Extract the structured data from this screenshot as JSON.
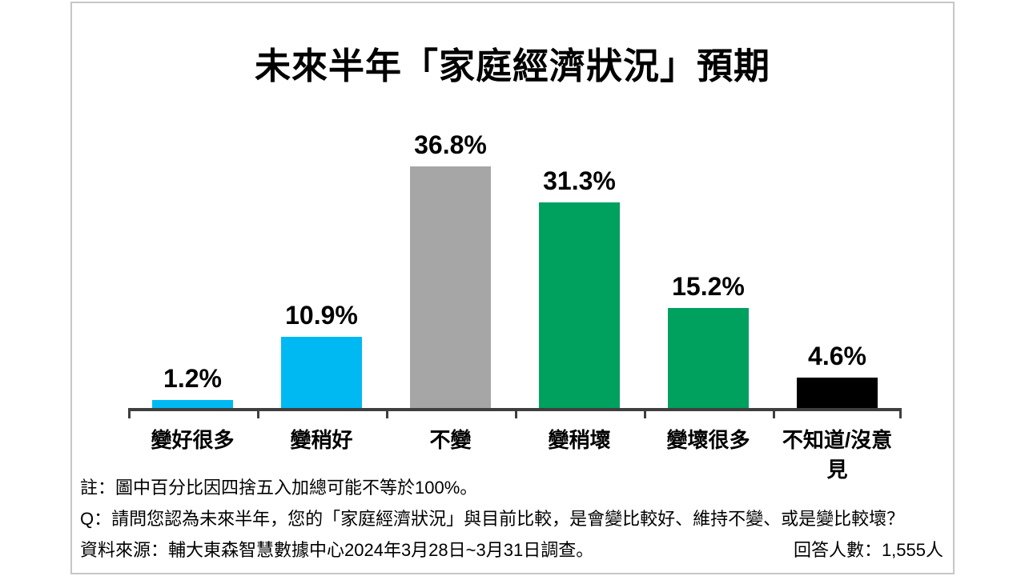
{
  "chart_data": {
    "type": "bar",
    "title": "未來半年「家庭經濟狀況」預期",
    "categories": [
      "變好很多",
      "變稍好",
      "不變",
      "變稍壞",
      "變壞很多",
      "不知道/沒意見"
    ],
    "values": [
      1.2,
      10.9,
      36.8,
      31.3,
      15.2,
      4.6
    ],
    "value_labels": [
      "1.2%",
      "10.9%",
      "36.8%",
      "31.3%",
      "15.2%",
      "4.6%"
    ],
    "bar_colors": [
      "#00B9F2",
      "#00B9F2",
      "#A6A6A6",
      "#00A05E",
      "#00A05E",
      "#000000"
    ],
    "ylim": [
      0,
      40
    ],
    "grid": false,
    "legend": false,
    "axis_color": "#3F3F3F"
  },
  "footer": {
    "note": "註：圖中百分比因四捨五入加總可能不等於100%。",
    "question": "Q：請問您認為未來半年，您的「家庭經濟狀況」與目前比較，是會變比較好、維持不變、或是變比較壞？",
    "source": "資料來源：輔大東森智慧數據中心2024年3月28日~3月31日調查。",
    "respondents": "回答人數：1,555人"
  }
}
